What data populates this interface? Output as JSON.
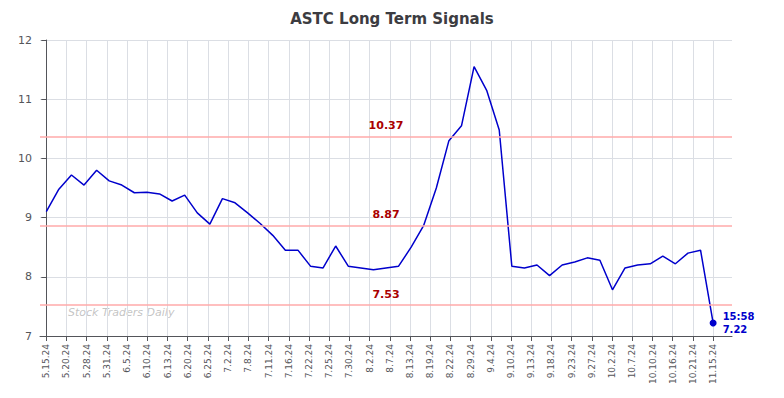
{
  "chart_data": {
    "type": "line",
    "title": "ASTC Long Term Signals",
    "color": "#0000cc",
    "x": [
      0,
      1,
      2,
      3,
      4,
      5,
      6,
      7,
      8,
      9,
      10,
      11,
      12,
      13,
      14,
      15,
      16,
      17,
      18,
      19,
      20,
      21,
      22,
      23,
      24,
      25,
      26,
      27,
      28,
      29,
      30,
      31,
      32,
      33,
      34,
      35,
      36,
      37,
      38,
      39,
      40,
      41,
      42,
      43,
      44,
      45,
      46,
      47,
      48,
      49,
      50,
      51,
      52,
      53
    ],
    "values": [
      9.1,
      9.48,
      9.72,
      9.55,
      9.8,
      9.62,
      9.55,
      9.42,
      9.43,
      9.4,
      9.28,
      9.38,
      9.08,
      8.89,
      9.32,
      9.25,
      9.08,
      8.9,
      8.7,
      8.45,
      8.45,
      8.18,
      8.15,
      8.52,
      8.18,
      8.15,
      8.12,
      8.15,
      8.18,
      8.5,
      8.87,
      9.5,
      10.3,
      10.55,
      11.55,
      11.15,
      10.48,
      8.18,
      8.15,
      8.2,
      8.02,
      8.2,
      8.25,
      8.32,
      8.28,
      7.78,
      8.15,
      8.2,
      8.22,
      8.35,
      8.22,
      8.4,
      8.45,
      7.22
    ],
    "xlim": [
      -0.5,
      54.5
    ],
    "xticks": [
      {
        "value": 0,
        "label": "5.15.24"
      },
      {
        "value": 1.6061,
        "label": "5.20.24"
      },
      {
        "value": 3.2121,
        "label": "5.28.24"
      },
      {
        "value": 4.8182,
        "label": "5.31.24"
      },
      {
        "value": 6.4242,
        "label": "6.5.24"
      },
      {
        "value": 8.0303,
        "label": "6.10.24"
      },
      {
        "value": 9.6364,
        "label": "6.13.24"
      },
      {
        "value": 11.2424,
        "label": "6.20.24"
      },
      {
        "value": 12.8485,
        "label": "6.25.24"
      },
      {
        "value": 14.4545,
        "label": "7.2.24"
      },
      {
        "value": 16.0606,
        "label": "7.8.24"
      },
      {
        "value": 17.6667,
        "label": "7.11.24"
      },
      {
        "value": 19.2727,
        "label": "7.16.24"
      },
      {
        "value": 20.8788,
        "label": "7.22.24"
      },
      {
        "value": 22.4848,
        "label": "7.25.24"
      },
      {
        "value": 24.0909,
        "label": "7.30.24"
      },
      {
        "value": 25.697,
        "label": "8.2.24"
      },
      {
        "value": 27.303,
        "label": "8.7.24"
      },
      {
        "value": 28.9091,
        "label": "8.13.24"
      },
      {
        "value": 30.5152,
        "label": "8.19.24"
      },
      {
        "value": 32.1212,
        "label": "8.22.24"
      },
      {
        "value": 33.7273,
        "label": "8.29.24"
      },
      {
        "value": 35.3333,
        "label": "9.4.24"
      },
      {
        "value": 36.9394,
        "label": "9.10.24"
      },
      {
        "value": 38.5455,
        "label": "9.13.24"
      },
      {
        "value": 40.1515,
        "label": "9.18.24"
      },
      {
        "value": 41.7576,
        "label": "9.23.24"
      },
      {
        "value": 43.3636,
        "label": "9.27.24"
      },
      {
        "value": 44.9697,
        "label": "10.2.24"
      },
      {
        "value": 46.5758,
        "label": "10.7.24"
      },
      {
        "value": 48.1818,
        "label": "10.10.24"
      },
      {
        "value": 49.7879,
        "label": "10.16.24"
      },
      {
        "value": 51.3939,
        "label": "10.21.24"
      },
      {
        "value": 53,
        "label": "11.15.24"
      }
    ],
    "ylim": [
      7,
      12
    ],
    "yticks": [
      7,
      8,
      9,
      10,
      11,
      12
    ],
    "grid": true,
    "reference_lines": [
      {
        "value": 10.37,
        "color": "#ffaaaa",
        "label_color": "#aa0000"
      },
      {
        "value": 8.87,
        "color": "#ffaaaa",
        "label_color": "#aa0000"
      },
      {
        "value": 7.53,
        "color": "#ffaaaa",
        "label_color": "#aa0000"
      }
    ],
    "annotations": [
      {
        "text": "15:58",
        "x": 53,
        "y": 7.22
      },
      {
        "text": "7.22",
        "x": 53,
        "y": 7.22
      }
    ],
    "watermark": {
      "text": "Stock Traders Daily",
      "color": "#aaaaaa"
    }
  }
}
